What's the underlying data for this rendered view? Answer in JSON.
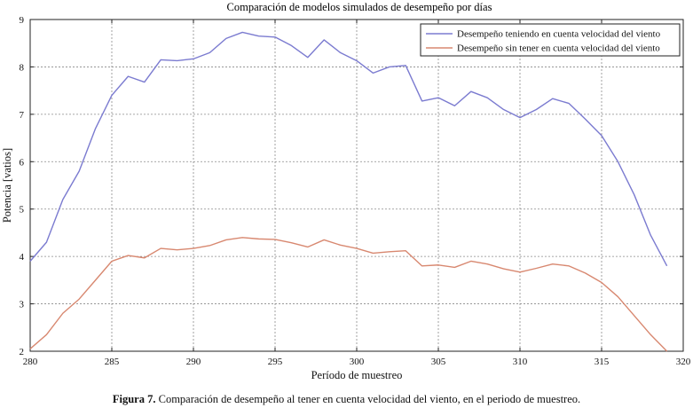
{
  "chart_data": {
    "type": "line",
    "title": "Comparación de modelos simulados de desempeño por días",
    "xlabel": "Período de muestreo",
    "ylabel": "Potencia [vatios]",
    "xlim": [
      280,
      320
    ],
    "ylim": [
      2,
      9
    ],
    "xticks": [
      280,
      285,
      290,
      295,
      300,
      305,
      310,
      315,
      320
    ],
    "yticks": [
      2,
      3,
      4,
      5,
      6,
      7,
      8,
      9
    ],
    "grid": true,
    "legend_position": "top-right",
    "x": [
      280,
      281,
      282,
      283,
      284,
      285,
      286,
      287,
      288,
      289,
      290,
      291,
      292,
      293,
      294,
      295,
      296,
      297,
      298,
      299,
      300,
      301,
      302,
      303,
      304,
      305,
      306,
      307,
      308,
      309,
      310,
      311,
      312,
      313,
      314,
      315,
      316,
      317,
      318,
      319
    ],
    "series": [
      {
        "name": "Desempeño teniendo en cuenta velocidad del viento",
        "color": "#7b7bd0",
        "values": [
          3.9,
          4.3,
          5.2,
          5.8,
          6.7,
          7.4,
          7.8,
          7.68,
          8.15,
          8.13,
          8.17,
          8.3,
          8.6,
          8.73,
          8.65,
          8.63,
          8.45,
          8.2,
          8.57,
          8.3,
          8.13,
          7.87,
          8.0,
          8.03,
          7.28,
          7.35,
          7.18,
          7.48,
          7.35,
          7.1,
          6.93,
          7.1,
          7.33,
          7.23,
          6.9,
          6.55,
          6.0,
          5.3,
          4.45,
          3.8
        ]
      },
      {
        "name": "Desempeño sin tener en cuenta velocidad del viento",
        "color": "#d88870",
        "values": [
          2.05,
          2.35,
          2.8,
          3.1,
          3.5,
          3.9,
          4.02,
          3.97,
          4.17,
          4.14,
          4.17,
          4.23,
          4.35,
          4.4,
          4.37,
          4.36,
          4.29,
          4.2,
          4.35,
          4.24,
          4.17,
          4.07,
          4.1,
          4.12,
          3.8,
          3.82,
          3.77,
          3.9,
          3.84,
          3.74,
          3.67,
          3.75,
          3.84,
          3.8,
          3.65,
          3.45,
          3.15,
          2.75,
          2.35,
          2.0
        ]
      }
    ]
  },
  "caption": {
    "prefix": "Figura 7.",
    "text": " Comparación de desempeño al tener en cuenta velocidad del viento, en el periodo de muestreo."
  }
}
